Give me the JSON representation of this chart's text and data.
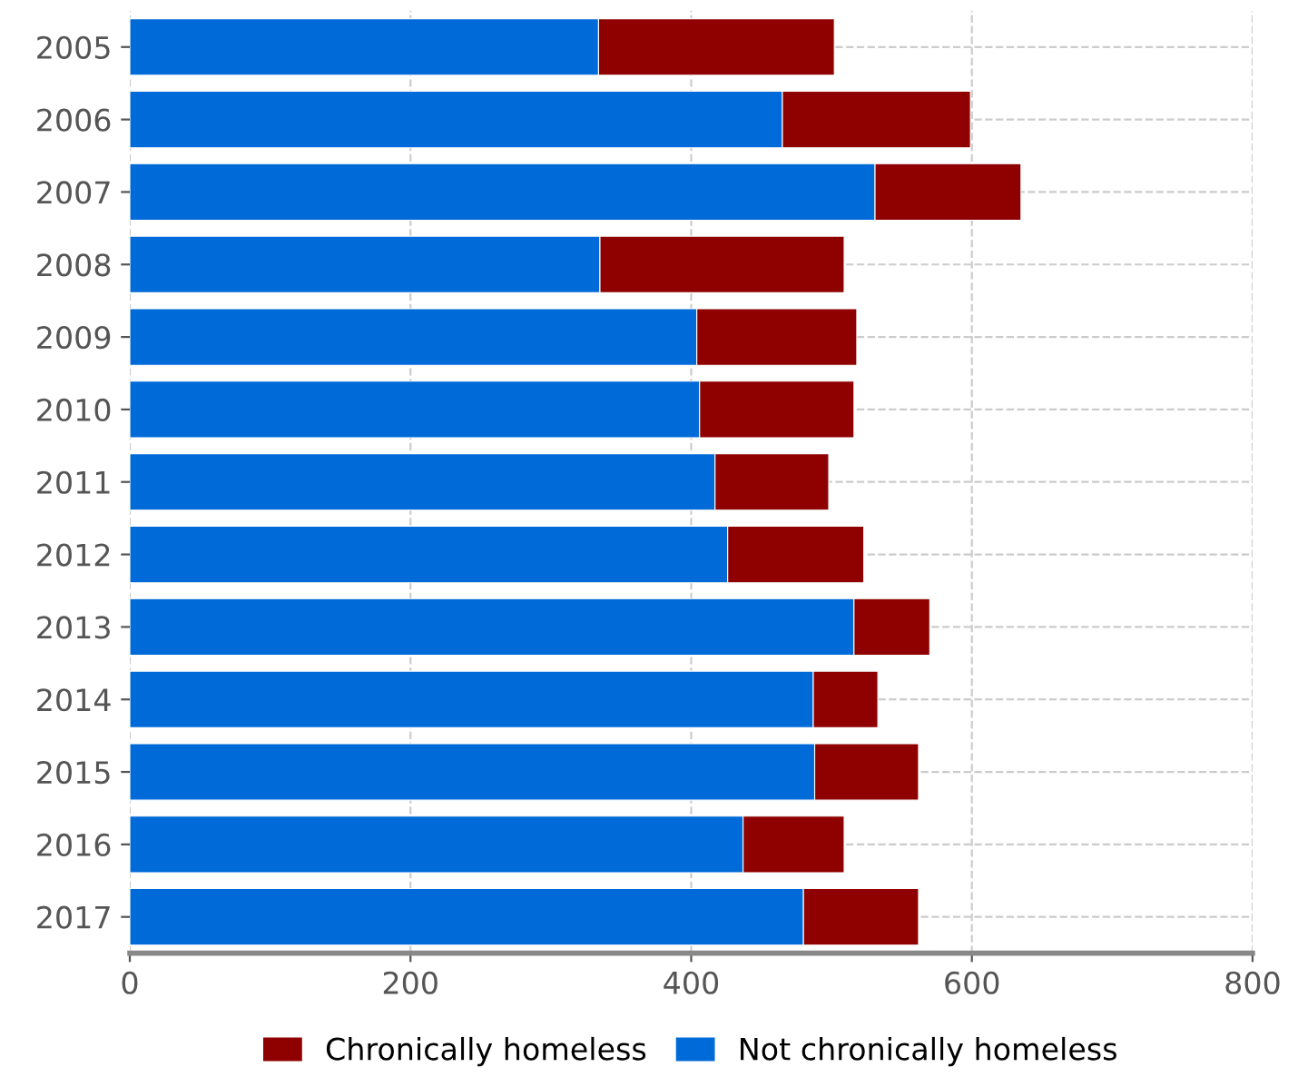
{
  "chart_data": {
    "type": "bar",
    "orientation": "horizontal",
    "stacked": true,
    "categories": [
      "2005",
      "2006",
      "2007",
      "2008",
      "2009",
      "2010",
      "2011",
      "2012",
      "2013",
      "2014",
      "2015",
      "2016",
      "2017"
    ],
    "series": [
      {
        "name": "Not chronically homeless",
        "color": "#006ad8",
        "values": [
          334,
          465,
          531,
          335,
          404,
          406,
          417,
          426,
          516,
          487,
          488,
          437,
          480
        ]
      },
      {
        "name": "Chronically homeless",
        "color": "#8f0000",
        "values": [
          168,
          134,
          104,
          174,
          114,
          110,
          81,
          97,
          54,
          46,
          74,
          72,
          82
        ]
      }
    ],
    "xlim": [
      0,
      800
    ],
    "xticks": [
      0,
      200,
      400,
      600,
      800
    ],
    "grid": true,
    "legend": "bottom"
  }
}
